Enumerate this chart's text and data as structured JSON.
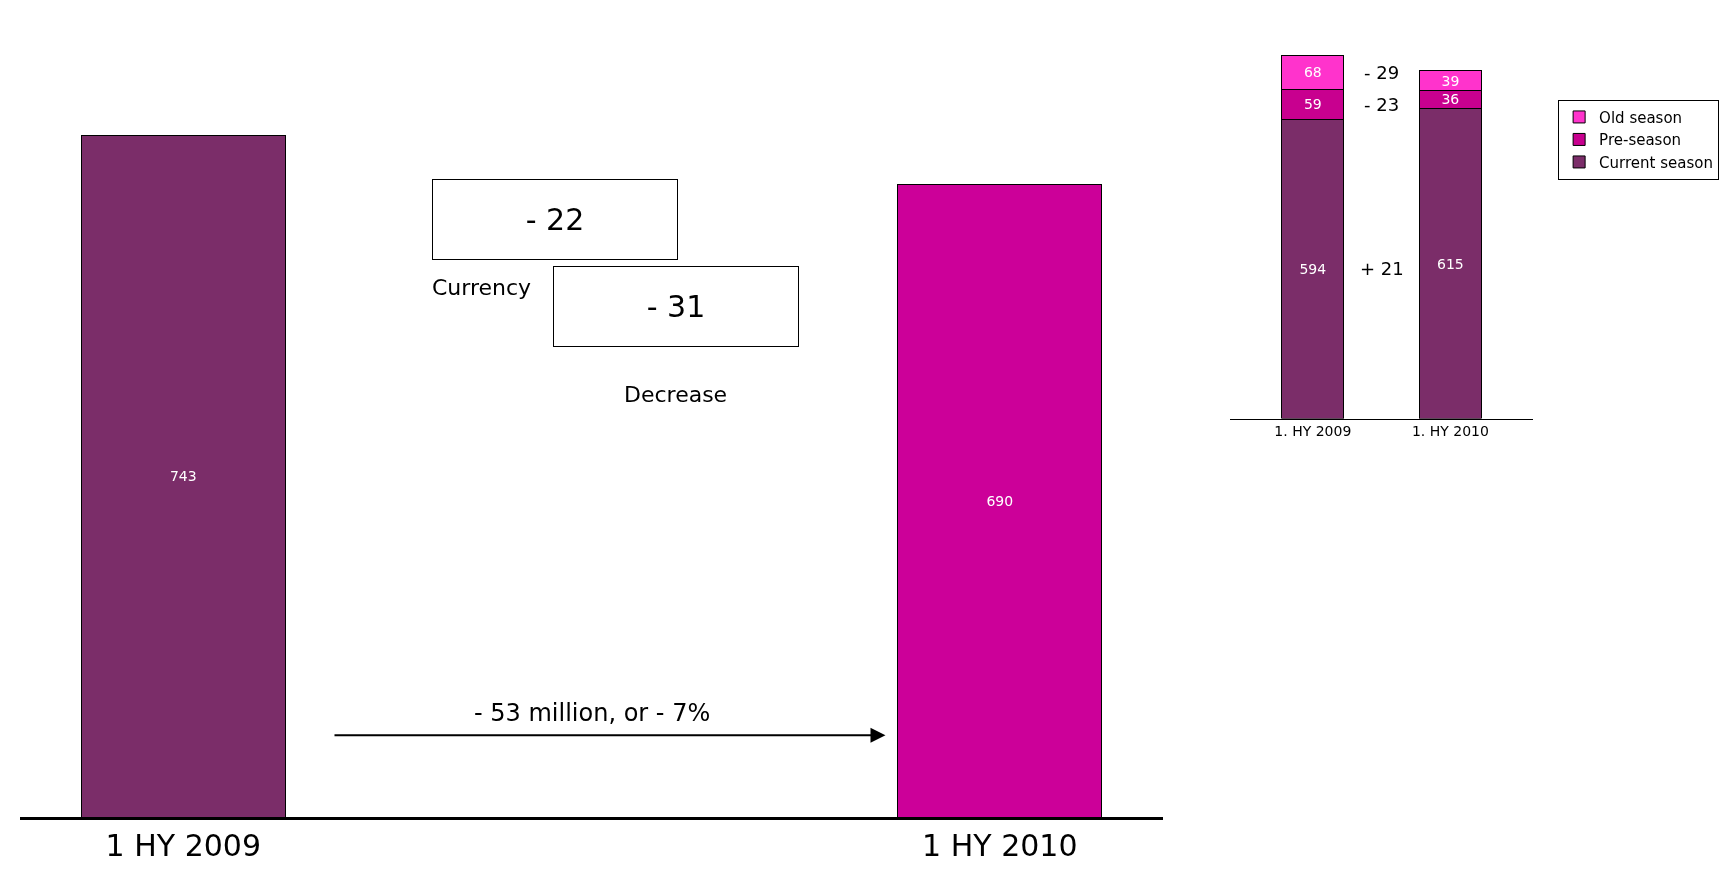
{
  "chart_data": [
    {
      "type": "bar",
      "categories": [
        "1 HY 2009",
        "1 HY 2010"
      ],
      "values": [
        743,
        690
      ],
      "colors": [
        "#7b2d69",
        "#cc0099"
      ],
      "data_labels": true,
      "annotations": [
        "- 22",
        "Currency",
        "- 31",
        "Decrease",
        "- 53 million, or - 7%"
      ]
    },
    {
      "type": "bar",
      "stacked": true,
      "categories": [
        "1. HY 2009",
        "1. HY 2010"
      ],
      "series": [
        {
          "name": "Current season",
          "color": "#7b2d69",
          "values": [
            594,
            615
          ]
        },
        {
          "name": "Pre-season",
          "color": "#c8008f",
          "values": [
            59,
            36
          ]
        },
        {
          "name": "Old season",
          "color": "#ff33cc",
          "values": [
            68,
            39
          ]
        }
      ],
      "data_labels": true,
      "legend": "right",
      "annotations": [
        "- 29",
        "- 23",
        "+ 21"
      ]
    }
  ]
}
